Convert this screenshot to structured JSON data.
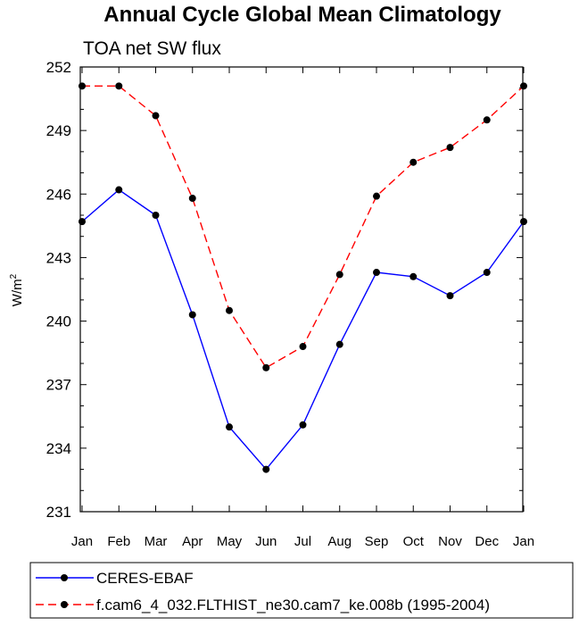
{
  "chart_data": {
    "type": "line",
    "title": "Annual Cycle Global Mean Climatology",
    "subtitle": "TOA net SW flux",
    "ylabel_base": "W/m",
    "ylabel_sup": "2",
    "xlabel": "",
    "categories": [
      "Jan",
      "Feb",
      "Mar",
      "Apr",
      "May",
      "Jun",
      "Jul",
      "Aug",
      "Sep",
      "Oct",
      "Nov",
      "Dec",
      "Jan"
    ],
    "ylim": [
      231,
      252
    ],
    "yticks": [
      231,
      234,
      237,
      240,
      243,
      246,
      249,
      252
    ],
    "grid": false,
    "legend_position": "bottom",
    "series": [
      {
        "name": "CERES-EBAF",
        "color": "#0000ff",
        "dash": "solid",
        "values": [
          244.7,
          246.2,
          245.0,
          240.3,
          235.0,
          233.0,
          235.1,
          238.9,
          242.3,
          242.1,
          241.2,
          242.3,
          244.7
        ]
      },
      {
        "name": "f.cam6_4_032.FLTHIST_ne30.cam7_ke.008b (1995-2004)",
        "color": "#ff0000",
        "dash": "dashed",
        "values": [
          251.1,
          251.1,
          249.7,
          245.8,
          240.5,
          237.8,
          238.8,
          242.2,
          245.9,
          247.5,
          248.2,
          249.5,
          251.1
        ]
      }
    ]
  }
}
